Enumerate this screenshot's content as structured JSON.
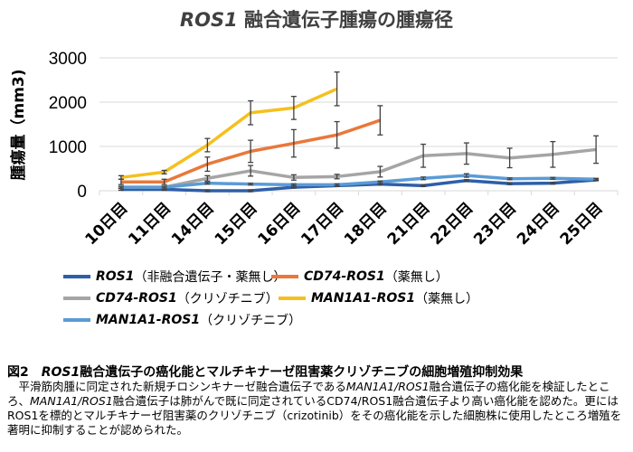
{
  "chart_data": {
    "type": "line",
    "title_italic": "ROS1",
    "title_rest": " 融合遺伝子腫瘍の腫瘍径",
    "ylabel": "腫瘍量（mm3)",
    "xlabel": "",
    "ylim": [
      0,
      3000
    ],
    "yticks": [
      0,
      1000,
      2000,
      3000
    ],
    "grid": true,
    "legend_position": "bottom",
    "categories": [
      "10日目",
      "11日目",
      "14日目",
      "15日目",
      "16日目",
      "17日目",
      "18日目",
      "21日目",
      "22日目",
      "23日目",
      "24日目",
      "25日目"
    ],
    "series": [
      {
        "name": "ROS1",
        "name_note": "（非融合遺伝子・薬無し）",
        "color": "#2e5fa8",
        "values": [
          30,
          30,
          0,
          0,
          80,
          115,
          150,
          115,
          230,
          160,
          170,
          245
        ],
        "errors": [
          20,
          20,
          20,
          20,
          20,
          20,
          20,
          20,
          20,
          20,
          20,
          20
        ]
      },
      {
        "name": "CD74-ROS1",
        "name_note": "（薬無し）",
        "color": "#e9783a",
        "values": [
          200,
          200,
          600,
          890,
          1070,
          1260,
          1590,
          null,
          null,
          null,
          null,
          null
        ],
        "errors": [
          60,
          60,
          160,
          250,
          310,
          300,
          330,
          null,
          null,
          null,
          null,
          null
        ]
      },
      {
        "name": "CD74-ROS1",
        "name_note": "（クリゾチニブ）",
        "color": "#a5a5a5",
        "values": [
          80,
          80,
          280,
          450,
          300,
          320,
          430,
          790,
          840,
          740,
          820,
          930
        ],
        "errors": [
          20,
          20,
          60,
          120,
          60,
          50,
          120,
          260,
          240,
          220,
          290,
          310
        ]
      },
      {
        "name": "MAN1A1-ROS1",
        "name_note": "（薬無し）",
        "color": "#f5c01e",
        "values": [
          300,
          420,
          1030,
          1760,
          1870,
          2300,
          null,
          null,
          null,
          null,
          null,
          null
        ],
        "errors": [
          40,
          40,
          150,
          270,
          260,
          380,
          null,
          null,
          null,
          null,
          null,
          null
        ]
      },
      {
        "name": "MAN1A1-ROS1",
        "name_note": "（クリゾチニブ）",
        "color": "#5b9bd5",
        "values": [
          80,
          80,
          170,
          150,
          135,
          135,
          200,
          280,
          345,
          270,
          280,
          260
        ],
        "errors": [
          20,
          20,
          20,
          20,
          20,
          20,
          20,
          30,
          40,
          20,
          20,
          20
        ]
      }
    ]
  },
  "caption": {
    "fig": "図2　",
    "title_italic": "ROS1",
    "title_rest": "融合遺伝子の癌化能とマルチキナーゼ阻害薬クリゾチニブの細胞増殖抑制効果",
    "body1": "　平滑筋肉腫に同定された新規チロシンキナーゼ融合遺伝子である",
    "body1_i": "MAN1A1/ROS1",
    "body2": "融合遺伝子の癌化能を検証したところ、",
    "body2_i": "MAN1A1/ROS1",
    "body3": "融合遺伝子は肺がんで既に同定されているCD74/ROS1融合遺伝子より高い癌化能を認めた。更にはROS1を標的とマルチキナーゼ阻害薬のクリゾチニブ（crizotinib）をその癌化能を示した細胞株に使用したところ増殖を著明に抑制することが認められた。"
  }
}
